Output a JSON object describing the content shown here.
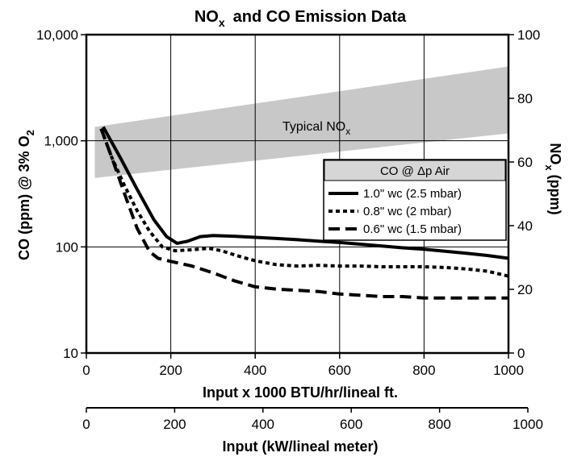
{
  "chart_data": {
    "type": "line",
    "title": "NOx and CO Emission Data",
    "title_parts": {
      "main": "NO",
      "sub": "x",
      "rest": "and CO Emission Data"
    },
    "xlabel": "Input x 1000 BTU/hr/lineal ft.",
    "xlabel2": "Input (kW/lineal meter)",
    "ylabel": "CO (ppm) @ 3% O2",
    "ylabel_parts": {
      "main": "CO (ppm) @ 3% O",
      "sub": "2"
    },
    "ylabel_right": "NOx (ppm)",
    "ylabel_right_parts": {
      "main": "NO",
      "sub": "x",
      "rest": " (ppm)"
    },
    "xlim": [
      0,
      1000
    ],
    "ylim": [
      10,
      10000
    ],
    "y_scale": "log",
    "ylim_right": [
      0,
      100
    ],
    "x2lim": [
      0,
      1000
    ],
    "x_ticks": [
      "0",
      "200",
      "400",
      "600",
      "800",
      "1000"
    ],
    "x_tick_values": [
      0,
      200,
      400,
      600,
      800,
      1000
    ],
    "y_ticks": [
      "10",
      "100",
      "1,000",
      "10,000"
    ],
    "y_tick_values": [
      10,
      100,
      1000,
      10000
    ],
    "y_right_ticks": [
      "0",
      "20",
      "40",
      "60",
      "80",
      "100"
    ],
    "y_right_tick_values": [
      0,
      20,
      40,
      60,
      80,
      100
    ],
    "x2_ticks": [
      "0",
      "200",
      "400",
      "600",
      "800",
      "1000"
    ],
    "x2_tick_values": [
      0,
      200,
      400,
      600,
      800,
      1000
    ],
    "grid": true,
    "band": {
      "label_parts": {
        "main": "Typical NO",
        "sub": "x"
      },
      "axis": "right",
      "x": [
        20,
        1000
      ],
      "lower": [
        55,
        69
      ],
      "upper": [
        71,
        90
      ],
      "color": "#c8c8c8"
    },
    "legend": {
      "title": "CO @ Δp Air",
      "position": "right",
      "header_color": "#d6d6d6"
    },
    "series": [
      {
        "name": "1.0\" wc (2.5 mbar)",
        "style": "solid",
        "x": [
          40,
          80,
          120,
          160,
          190,
          215,
          240,
          270,
          300,
          350,
          400,
          450,
          500,
          550,
          600,
          650,
          700,
          750,
          800,
          850,
          900,
          950,
          1000
        ],
        "y": [
          1350,
          700,
          350,
          180,
          125,
          108,
          113,
          125,
          128,
          126,
          123,
          120,
          117,
          113,
          110,
          106,
          102,
          98,
          95,
          91,
          87,
          83,
          78
        ]
      },
      {
        "name": "0.8\" wc (2 mbar)",
        "style": "dotted",
        "x": [
          35,
          60,
          90,
          120,
          150,
          180,
          210,
          250,
          290,
          320,
          360,
          400,
          450,
          500,
          550,
          600,
          650,
          700,
          750,
          800,
          850,
          900,
          950,
          1000
        ],
        "y": [
          1300,
          700,
          380,
          220,
          140,
          100,
          92,
          94,
          97,
          92,
          82,
          74,
          68,
          66,
          67,
          66,
          66,
          65,
          65,
          65,
          64,
          62,
          59,
          53
        ]
      },
      {
        "name": "0.6\" wc (1.5 mbar)",
        "style": "dashed",
        "x": [
          35,
          60,
          90,
          120,
          150,
          170,
          200,
          250,
          300,
          350,
          400,
          450,
          500,
          550,
          600,
          650,
          700,
          750,
          800,
          850,
          900,
          950,
          1000
        ],
        "y": [
          1300,
          700,
          320,
          150,
          90,
          78,
          73,
          66,
          57,
          48,
          42,
          40,
          39,
          38,
          36,
          35,
          34,
          34,
          33,
          33,
          33,
          33,
          33
        ]
      }
    ]
  }
}
